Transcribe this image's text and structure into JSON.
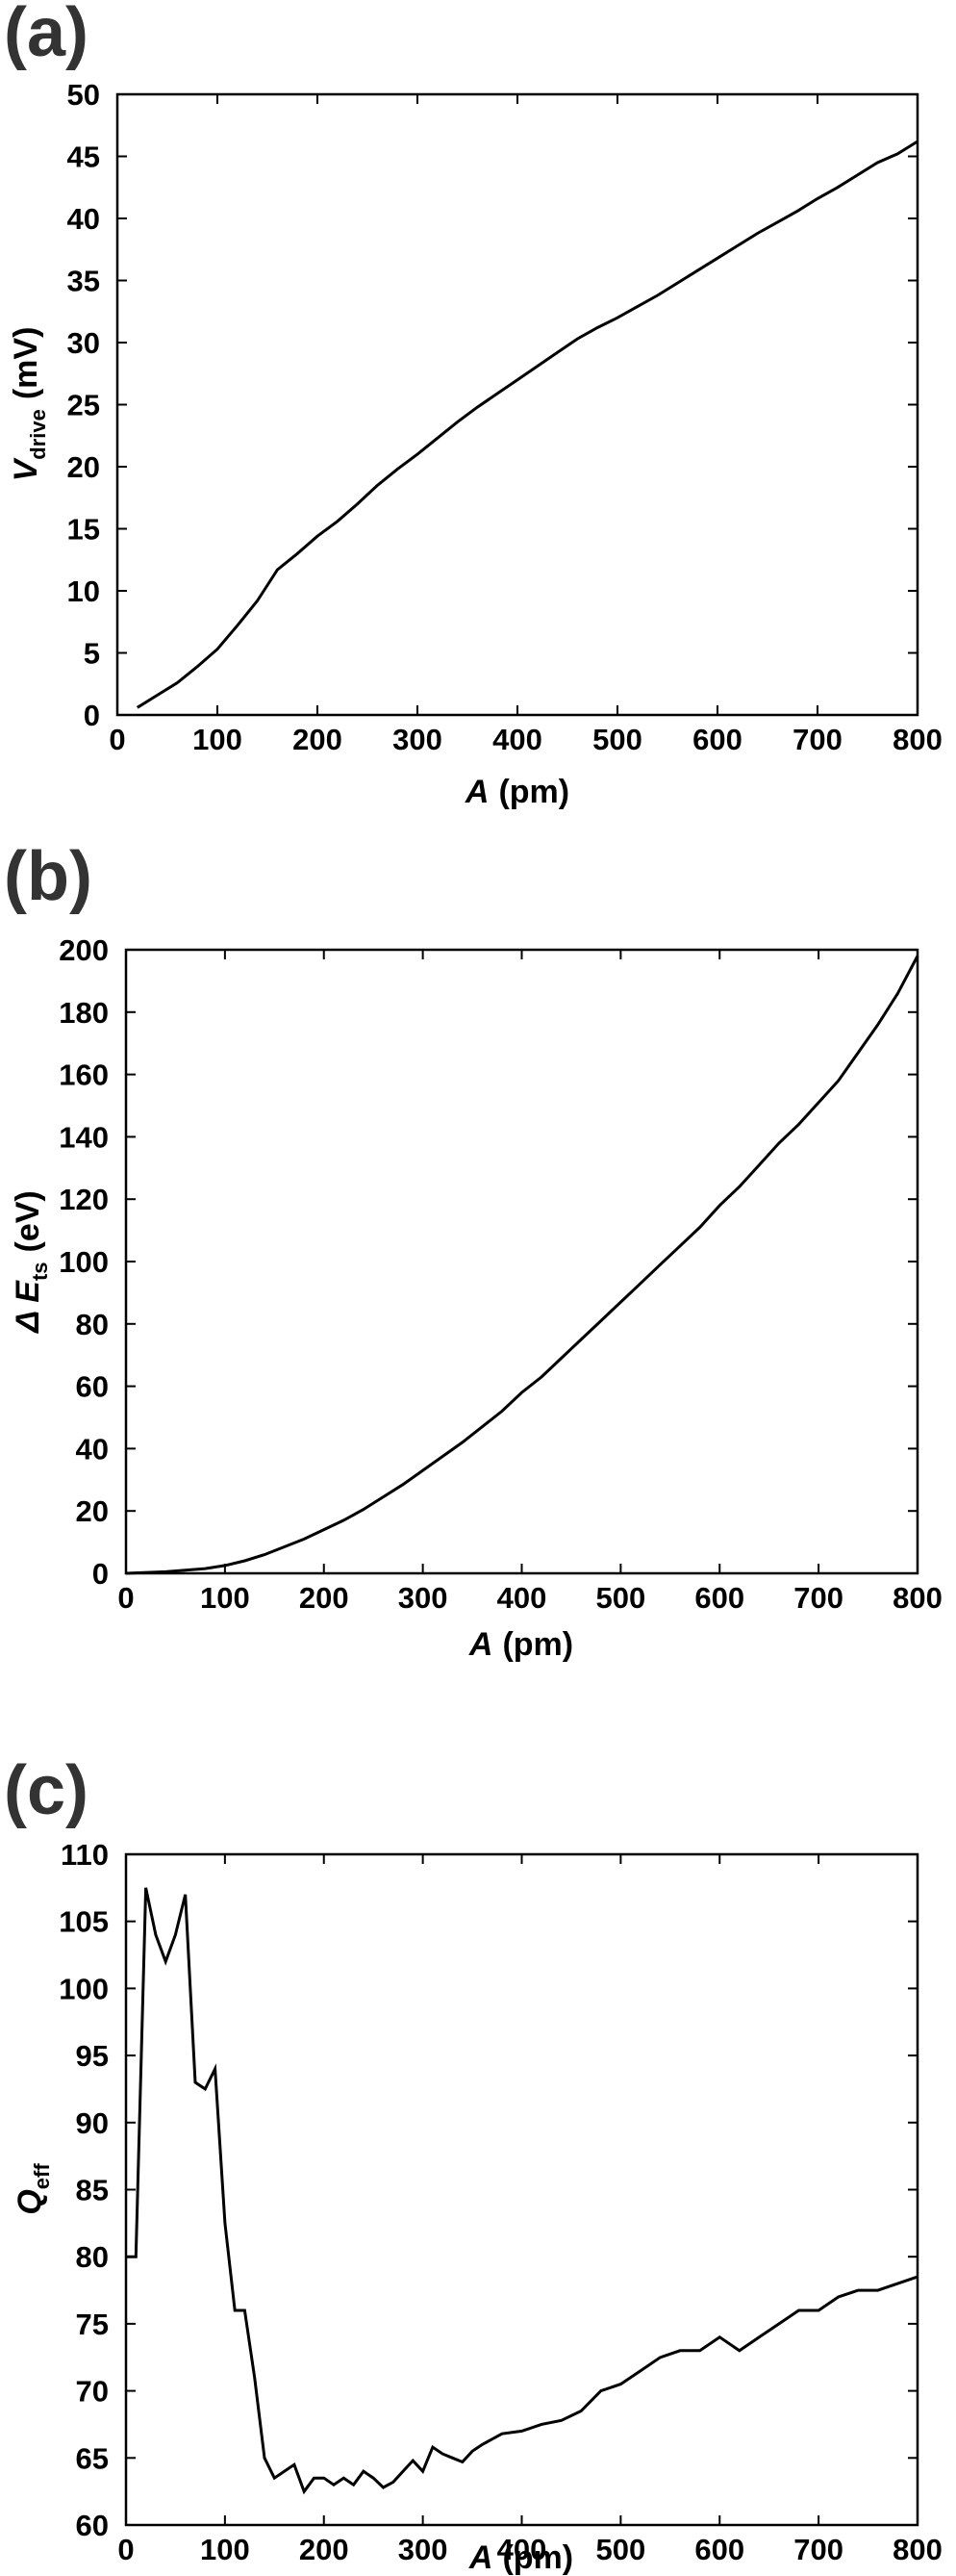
{
  "chart_data": [
    {
      "type": "line",
      "panel": "(a)",
      "ylabel_main": "V",
      "ylabel_sub": "drive",
      "ylabel_unit": "(mV)",
      "xlabel_main": "A",
      "xlabel_unit": "(pm)",
      "xlim": [
        0,
        800
      ],
      "ylim": [
        0,
        50
      ],
      "xticks": [
        0,
        100,
        200,
        300,
        400,
        500,
        600,
        700,
        800
      ],
      "yticks": [
        0,
        5,
        10,
        15,
        20,
        25,
        30,
        35,
        40,
        45,
        50
      ],
      "grid": false,
      "series": [
        {
          "x": [
            20,
            40,
            60,
            80,
            100,
            120,
            140,
            160,
            180,
            200,
            220,
            240,
            260,
            280,
            300,
            320,
            340,
            360,
            380,
            400,
            420,
            440,
            460,
            480,
            500,
            520,
            540,
            560,
            580,
            600,
            620,
            640,
            660,
            680,
            700,
            720,
            740,
            760,
            780,
            800
          ],
          "y": [
            0.6,
            1.6,
            2.6,
            3.9,
            5.3,
            7.2,
            9.2,
            11.7,
            13.0,
            14.4,
            15.6,
            17.0,
            18.5,
            19.8,
            21.0,
            22.3,
            23.6,
            24.8,
            25.9,
            27.0,
            28.1,
            29.2,
            30.3,
            31.2,
            32.0,
            32.9,
            33.8,
            34.8,
            35.8,
            36.8,
            37.8,
            38.8,
            39.7,
            40.6,
            41.6,
            42.5,
            43.5,
            44.5,
            45.2,
            46.2
          ]
        }
      ]
    },
    {
      "type": "line",
      "panel": "(b)",
      "ylabel_main": "Δ E",
      "ylabel_sub": "ts",
      "ylabel_unit": "(eV)",
      "xlabel_main": "A",
      "xlabel_unit": "(pm)",
      "xlim": [
        0,
        800
      ],
      "ylim": [
        0,
        200
      ],
      "xticks": [
        0,
        100,
        200,
        300,
        400,
        500,
        600,
        700,
        800
      ],
      "yticks": [
        0,
        20,
        40,
        60,
        80,
        100,
        120,
        140,
        160,
        180,
        200
      ],
      "grid": false,
      "series": [
        {
          "x": [
            0,
            40,
            80,
            100,
            120,
            140,
            160,
            180,
            200,
            220,
            240,
            260,
            280,
            300,
            320,
            340,
            360,
            380,
            400,
            420,
            440,
            460,
            480,
            500,
            520,
            540,
            560,
            580,
            600,
            620,
            640,
            660,
            680,
            700,
            720,
            740,
            760,
            780,
            800
          ],
          "y": [
            0,
            0.5,
            1.5,
            2.5,
            4.0,
            6.0,
            8.5,
            11.0,
            14.0,
            17.0,
            20.5,
            24.5,
            28.5,
            33.0,
            37.5,
            42.0,
            47.0,
            52.0,
            58.0,
            63.0,
            69.0,
            75.0,
            81.0,
            87.0,
            93.0,
            99.0,
            105.0,
            111.0,
            118.0,
            124.0,
            131.0,
            138.0,
            144.0,
            151.0,
            158.0,
            167.0,
            176.0,
            186.0,
            198.0
          ]
        }
      ]
    },
    {
      "type": "line",
      "panel": "(c)",
      "ylabel_main": "Q",
      "ylabel_sub": "eff",
      "ylabel_unit": "",
      "xlabel_main": "A",
      "xlabel_unit": "(pm)",
      "xlim": [
        0,
        800
      ],
      "ylim": [
        60,
        110
      ],
      "xticks": [
        0,
        100,
        200,
        300,
        400,
        500,
        600,
        700,
        800
      ],
      "yticks": [
        60,
        65,
        70,
        75,
        80,
        85,
        90,
        95,
        100,
        105,
        110
      ],
      "grid": false,
      "series": [
        {
          "x": [
            0,
            10,
            20,
            30,
            40,
            50,
            60,
            70,
            80,
            90,
            100,
            110,
            120,
            130,
            140,
            150,
            160,
            170,
            180,
            190,
            200,
            210,
            220,
            230,
            240,
            250,
            260,
            270,
            280,
            290,
            300,
            310,
            320,
            330,
            340,
            350,
            360,
            380,
            400,
            420,
            440,
            460,
            480,
            500,
            520,
            540,
            560,
            580,
            600,
            620,
            640,
            660,
            680,
            700,
            720,
            740,
            760,
            780,
            800
          ],
          "y": [
            80,
            80,
            107.5,
            104,
            102,
            104,
            107,
            93,
            92.5,
            94,
            82.5,
            76,
            76,
            71,
            65,
            63.5,
            64,
            64.5,
            62.5,
            63.5,
            63.5,
            63,
            63.5,
            63,
            64,
            63.5,
            62.8,
            63.2,
            64,
            64.8,
            64,
            65.8,
            65.3,
            65,
            64.7,
            65.5,
            66,
            66.8,
            67,
            67.5,
            67.8,
            68.5,
            70,
            70.5,
            71.5,
            72.5,
            73,
            73,
            74,
            73,
            74,
            75,
            76,
            76,
            77,
            77.5,
            77.5,
            78,
            78.5
          ]
        }
      ]
    }
  ]
}
